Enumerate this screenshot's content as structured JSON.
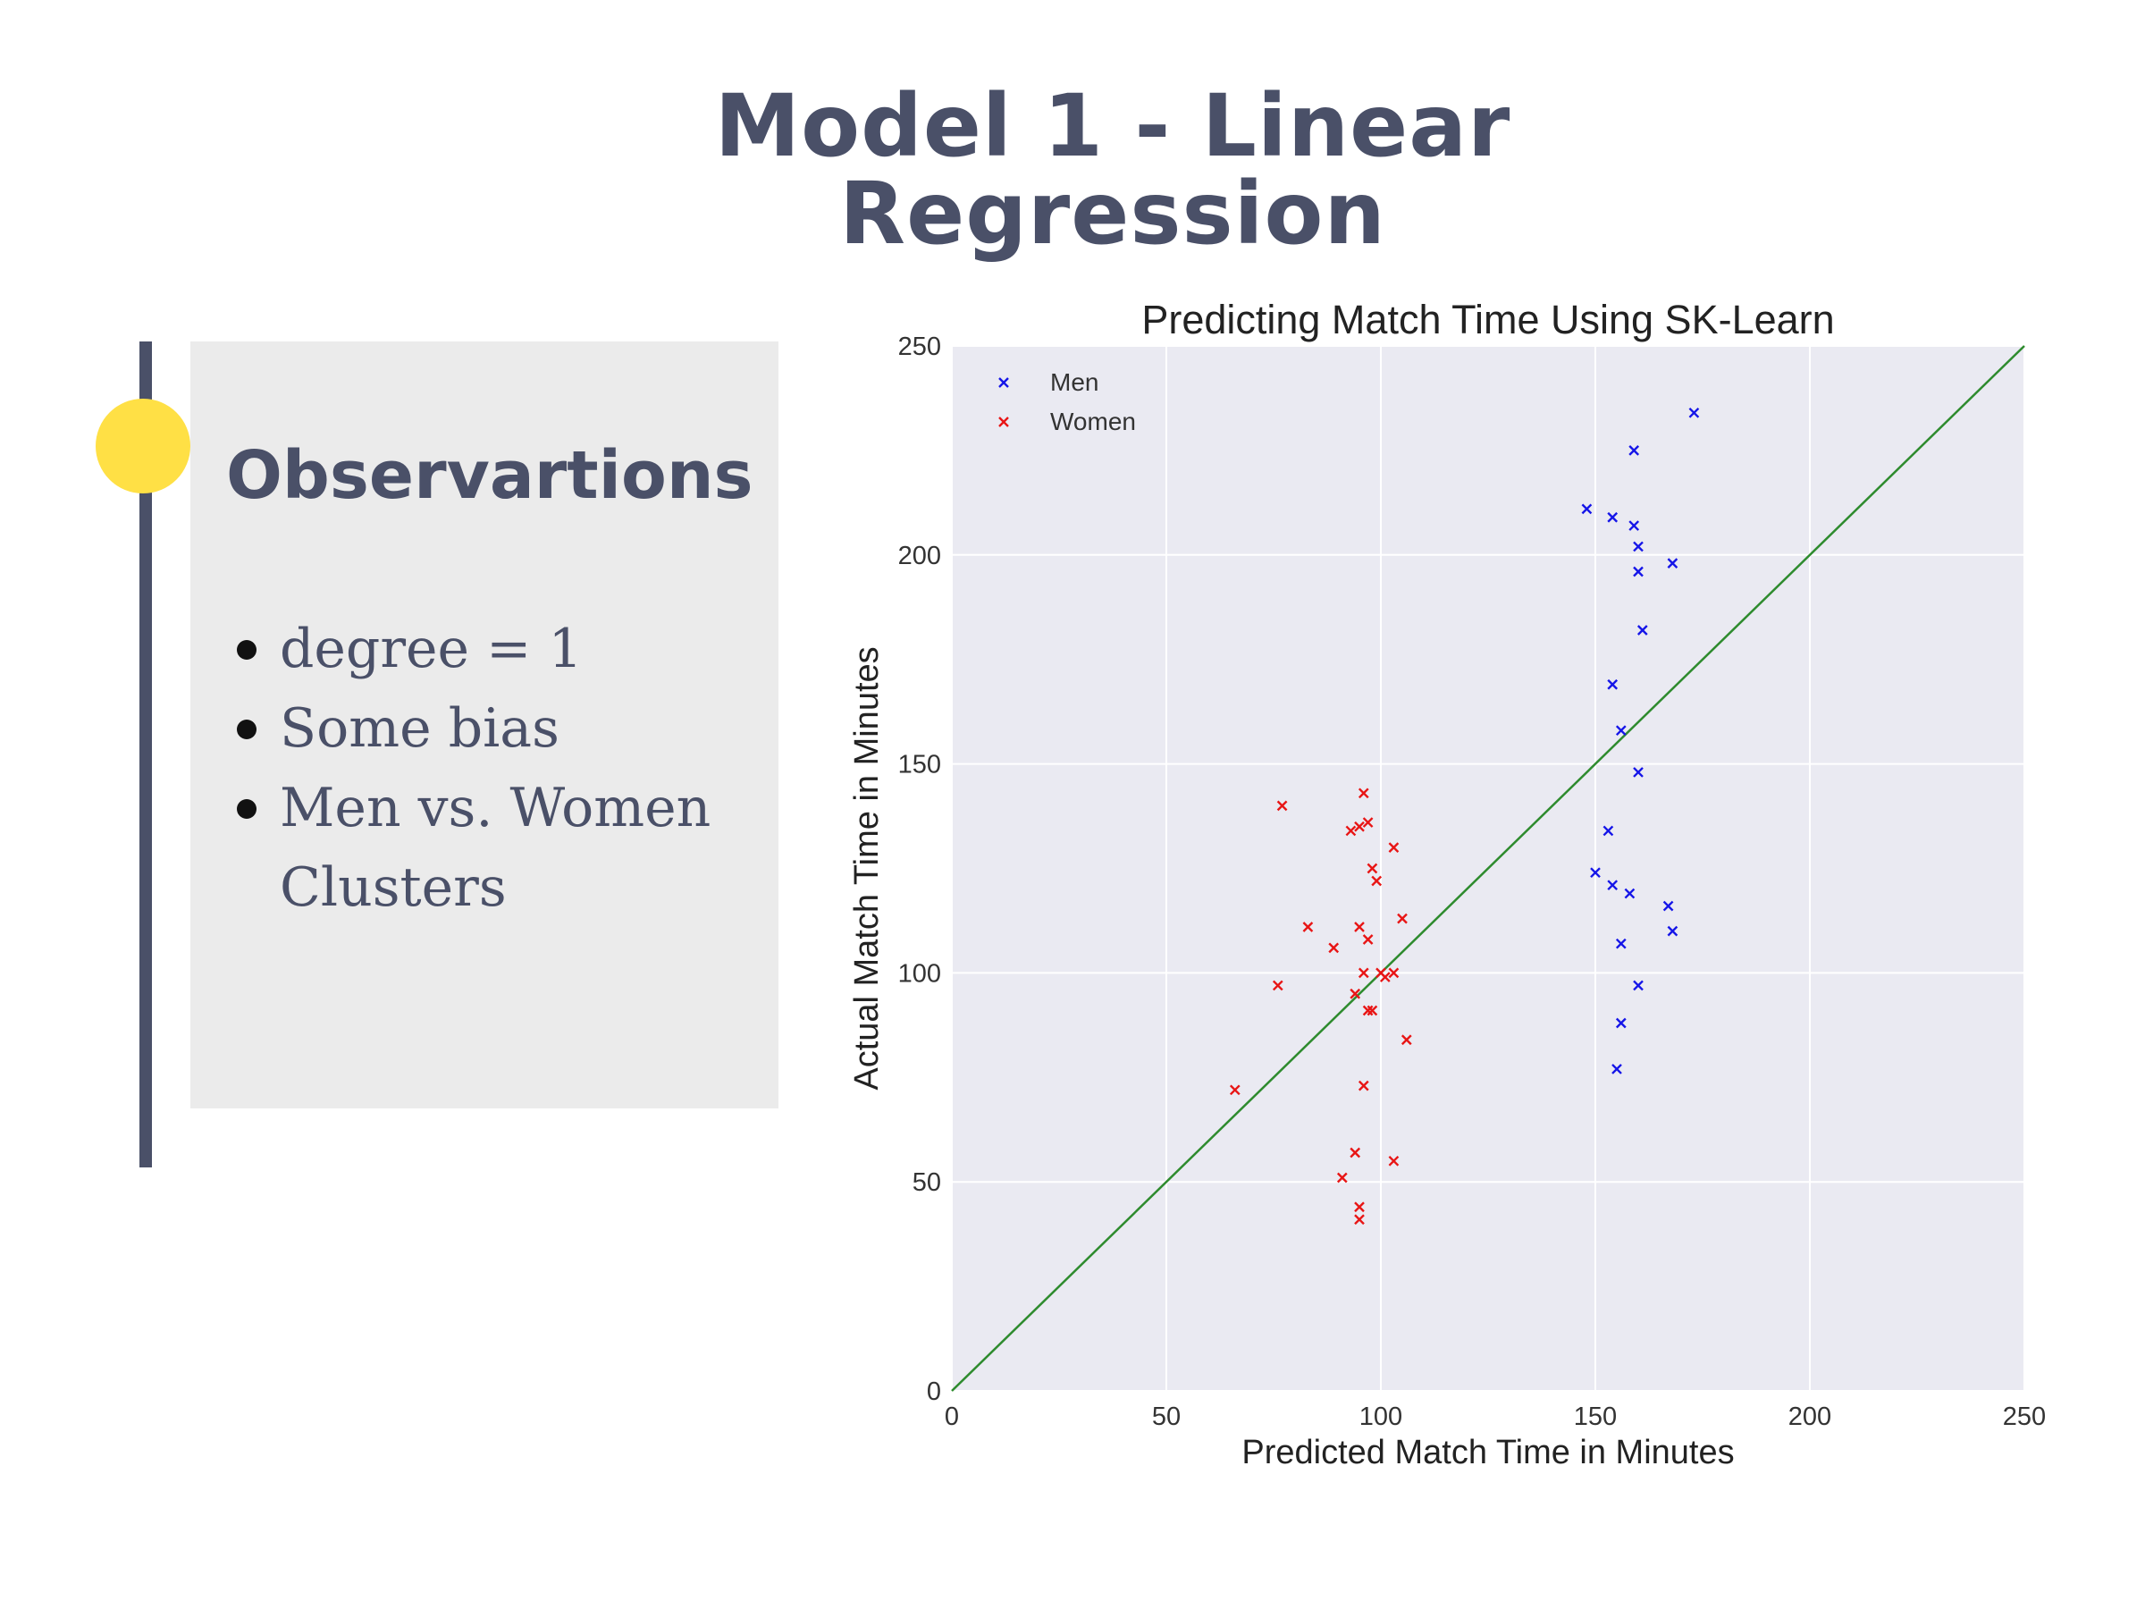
{
  "slide": {
    "title_lines": [
      "Model 1 - Linear",
      "Regression"
    ],
    "accent_color": "#4a5068",
    "dot_color": "#ffe045"
  },
  "panel": {
    "heading": "Observartions",
    "bullets": [
      "degree = 1",
      "Some bias",
      "Men vs. Women Clusters"
    ]
  },
  "chart_data": {
    "type": "scatter",
    "title": "Predicting Match Time Using SK-Learn",
    "xlabel": "Predicted Match Time in Minutes",
    "ylabel": "Actual Match Time in Minutes",
    "xlim": [
      0,
      250
    ],
    "ylim": [
      0,
      250
    ],
    "xticks": [
      0,
      50,
      100,
      150,
      200,
      250
    ],
    "yticks": [
      0,
      50,
      100,
      150,
      200,
      250
    ],
    "grid": true,
    "legend_position": "top-left",
    "marker": "x",
    "reference_line": {
      "from": [
        0,
        0
      ],
      "to": [
        250,
        250
      ],
      "color": "#2e8b2e"
    },
    "series": [
      {
        "name": "Men",
        "color": "#1515e8",
        "points": [
          [
            173,
            234
          ],
          [
            159,
            225
          ],
          [
            148,
            211
          ],
          [
            154,
            209
          ],
          [
            159,
            207
          ],
          [
            160,
            202
          ],
          [
            168,
            198
          ],
          [
            160,
            196
          ],
          [
            161,
            182
          ],
          [
            154,
            169
          ],
          [
            156,
            158
          ],
          [
            160,
            148
          ],
          [
            153,
            134
          ],
          [
            150,
            124
          ],
          [
            154,
            121
          ],
          [
            158,
            119
          ],
          [
            167,
            116
          ],
          [
            168,
            110
          ],
          [
            156,
            107
          ],
          [
            160,
            97
          ],
          [
            156,
            88
          ],
          [
            155,
            77
          ]
        ]
      },
      {
        "name": "Women",
        "color": "#e81515",
        "points": [
          [
            96,
            143
          ],
          [
            77,
            140
          ],
          [
            97,
            136
          ],
          [
            95,
            135
          ],
          [
            93,
            134
          ],
          [
            103,
            130
          ],
          [
            98,
            125
          ],
          [
            99,
            122
          ],
          [
            105,
            113
          ],
          [
            83,
            111
          ],
          [
            95,
            111
          ],
          [
            97,
            108
          ],
          [
            89,
            106
          ],
          [
            96,
            100
          ],
          [
            100,
            100
          ],
          [
            103,
            100
          ],
          [
            101,
            99
          ],
          [
            76,
            97
          ],
          [
            94,
            95
          ],
          [
            97,
            91
          ],
          [
            98,
            91
          ],
          [
            106,
            84
          ],
          [
            96,
            73
          ],
          [
            66,
            72
          ],
          [
            94,
            57
          ],
          [
            103,
            55
          ],
          [
            91,
            51
          ],
          [
            95,
            44
          ],
          [
            95,
            41
          ]
        ]
      }
    ]
  }
}
